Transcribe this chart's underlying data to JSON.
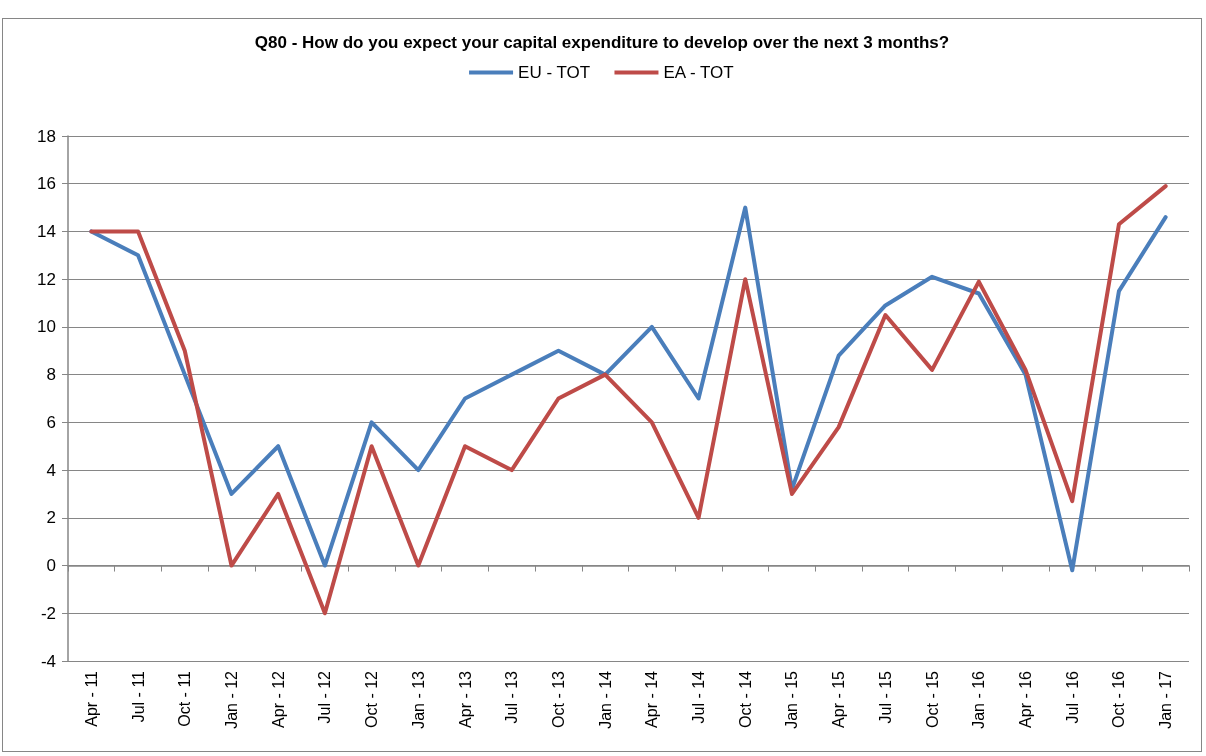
{
  "chart_data": {
    "type": "line",
    "title": "Q80 - How do you expect your capital expenditure to develop over the next 3 months?",
    "categories": [
      "Apr - 11",
      "Jul - 11",
      "Oct - 11",
      "Jan - 12",
      "Apr - 12",
      "Jul - 12",
      "Oct - 12",
      "Jan - 13",
      "Apr - 13",
      "Jul - 13",
      "Oct - 13",
      "Jan - 14",
      "Apr - 14",
      "Jul - 14",
      "Oct - 14",
      "Jan - 15",
      "Apr - 15",
      "Jul - 15",
      "Oct - 15",
      "Jan - 16",
      "Apr - 16",
      "Jul - 16",
      "Oct - 16",
      "Jan - 17"
    ],
    "series": [
      {
        "name": "EU - TOT",
        "color": "#4a7ebb",
        "values": [
          14,
          13,
          8,
          3,
          5,
          0,
          6,
          4,
          7,
          8,
          9,
          8,
          10,
          7,
          15,
          3.2,
          8.8,
          10.9,
          12.1,
          11.4,
          8,
          -0.2,
          11.5,
          14.6
        ]
      },
      {
        "name": "EA - TOT",
        "color": "#be4b48",
        "values": [
          14,
          14,
          9,
          0,
          3,
          -2,
          5,
          0,
          5,
          4,
          7,
          8,
          6,
          2,
          12,
          3,
          5.8,
          10.5,
          8.2,
          11.9,
          8.2,
          2.7,
          14.3,
          15.9
        ]
      }
    ],
    "ylim": [
      -4,
      18
    ],
    "yticks": [
      -4,
      -2,
      0,
      2,
      4,
      6,
      8,
      10,
      12,
      14,
      16,
      18
    ],
    "grid": "y",
    "legend": "top",
    "marker": "none",
    "line_style": "solid"
  }
}
